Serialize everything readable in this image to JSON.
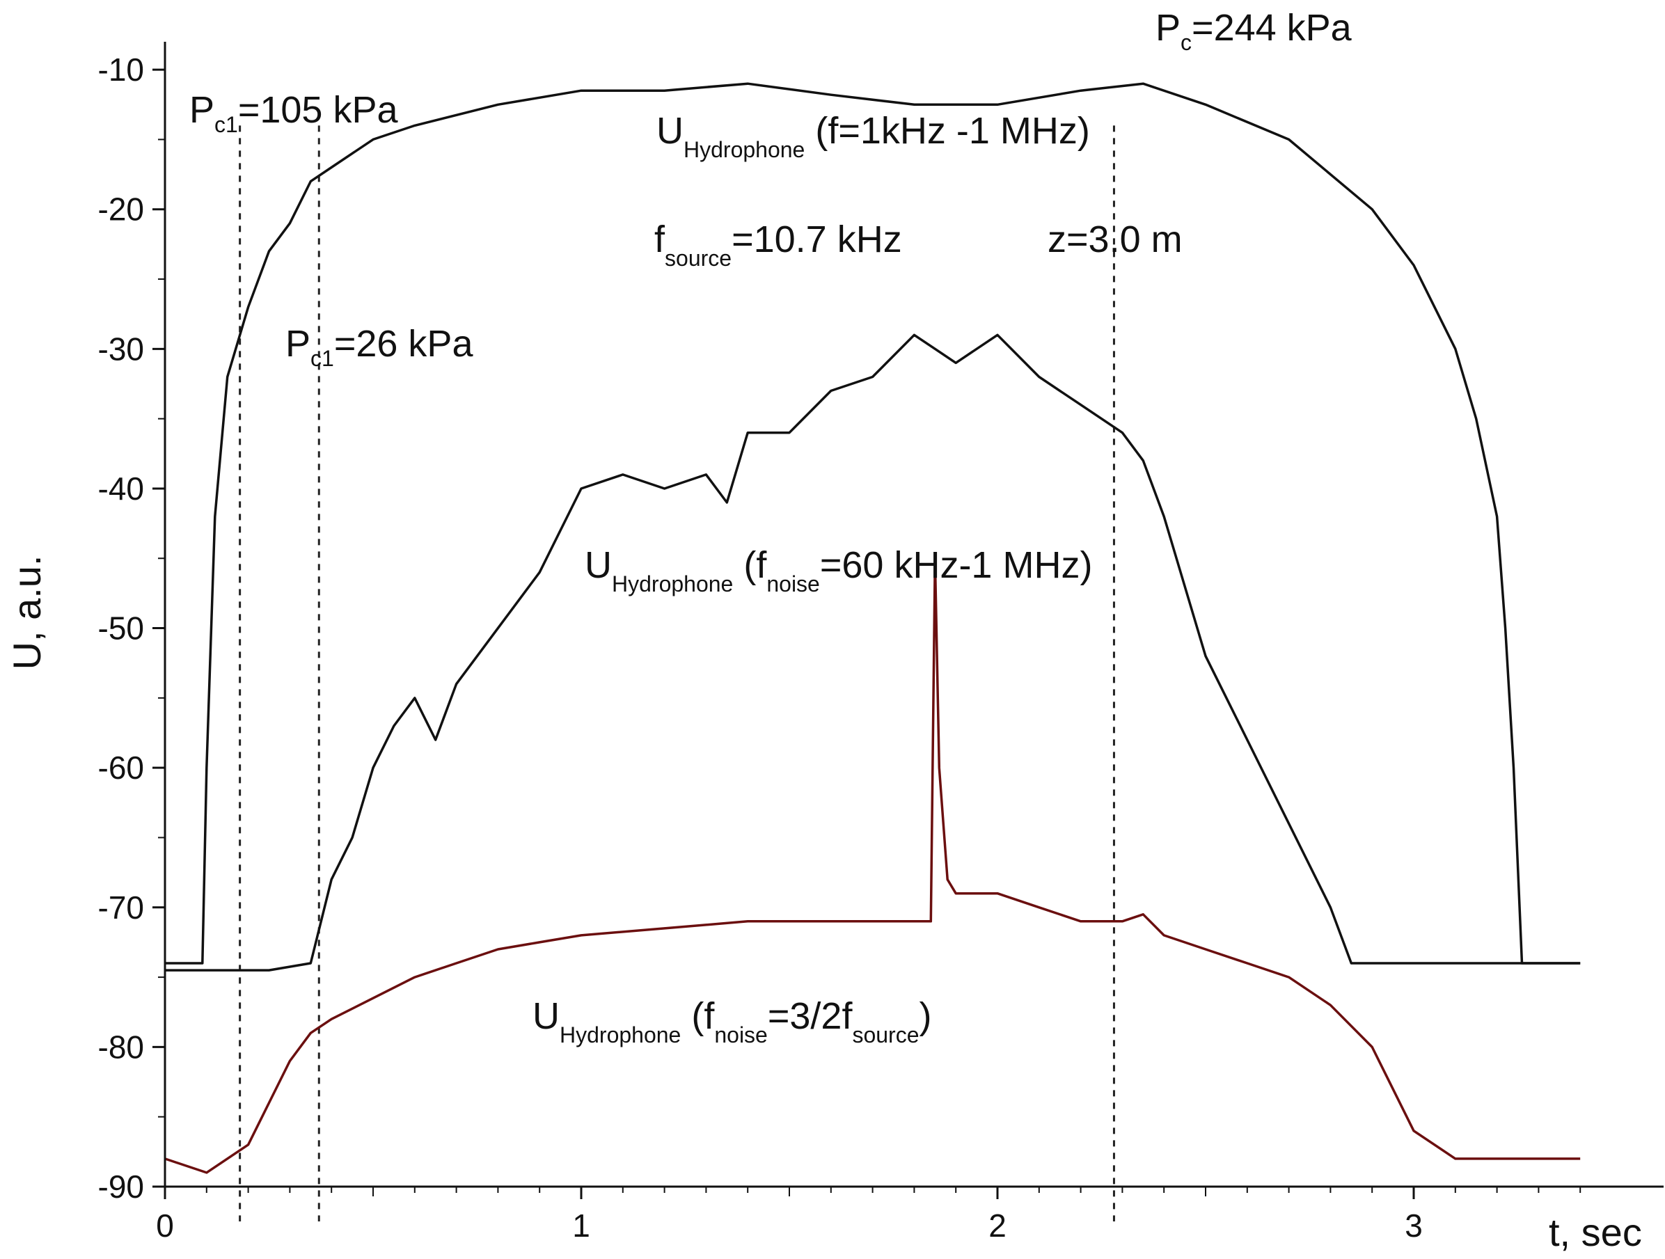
{
  "chart_data": {
    "type": "line",
    "title": "",
    "xlabel": "t, sec",
    "ylabel": "U, a.u.",
    "xlim": [
      0,
      3.5
    ],
    "ylim": [
      -90,
      -8
    ],
    "x_ticks": [
      0,
      1,
      2,
      3
    ],
    "x_tick_labels": [
      "0",
      "1",
      "2",
      "3"
    ],
    "y_ticks": [
      -10,
      -20,
      -30,
      -40,
      -50,
      -60,
      -70,
      -80,
      -90
    ],
    "y_tick_labels": [
      "-10",
      "-20",
      "-30",
      "-40",
      "-50",
      "-60",
      "-70",
      "-80",
      "-90"
    ],
    "grid": false,
    "legend": "none",
    "series": [
      {
        "color": "#111111",
        "x": [
          0,
          0.09,
          0.1,
          0.12,
          0.15,
          0.2,
          0.25,
          0.3,
          0.35,
          0.4,
          0.5,
          0.6,
          0.8,
          1.0,
          1.2,
          1.4,
          1.6,
          1.8,
          2.0,
          2.2,
          2.35,
          2.5,
          2.7,
          2.9,
          3.0,
          3.1,
          3.15,
          3.2,
          3.22,
          3.24,
          3.26,
          3.3,
          3.4
        ],
        "y": [
          -74,
          -74,
          -60,
          -42,
          -32,
          -27,
          -23,
          -21,
          -18,
          -17,
          -15,
          -14,
          -12.5,
          -11.5,
          -11.5,
          -11,
          -11.8,
          -12.5,
          -12.5,
          -11.5,
          -11,
          -12.5,
          -15,
          -20,
          -24,
          -30,
          -35,
          -42,
          -50,
          -60,
          -74,
          -74,
          -74
        ]
      },
      {
        "color": "#111111",
        "x": [
          0,
          0.1,
          0.25,
          0.35,
          0.4,
          0.45,
          0.5,
          0.55,
          0.6,
          0.65,
          0.7,
          0.8,
          0.85,
          0.9,
          0.95,
          1.0,
          1.1,
          1.2,
          1.3,
          1.35,
          1.4,
          1.5,
          1.6,
          1.7,
          1.8,
          1.85,
          1.9,
          2.0,
          2.1,
          2.2,
          2.3,
          2.35,
          2.4,
          2.5,
          2.6,
          2.7,
          2.8,
          2.85,
          3.0,
          3.2,
          3.4
        ],
        "y": [
          -74.5,
          -74.5,
          -74.5,
          -74,
          -68,
          -65,
          -60,
          -57,
          -55,
          -58,
          -54,
          -50,
          -48,
          -46,
          -43,
          -40,
          -39,
          -40,
          -39,
          -41,
          -36,
          -36,
          -33,
          -32,
          -29,
          -30,
          -31,
          -29,
          -32,
          -34,
          -36,
          -38,
          -42,
          -52,
          -58,
          -64,
          -70,
          -74,
          -74,
          -74,
          -74
        ]
      },
      {
        "color": "#6b0f0f",
        "x": [
          0,
          0.1,
          0.2,
          0.25,
          0.3,
          0.35,
          0.4,
          0.5,
          0.6,
          0.7,
          0.8,
          0.9,
          1.0,
          1.2,
          1.4,
          1.6,
          1.8,
          1.84,
          1.85,
          1.86,
          1.88,
          1.9,
          2.0,
          2.1,
          2.2,
          2.3,
          2.35,
          2.4,
          2.5,
          2.6,
          2.7,
          2.8,
          2.9,
          3.0,
          3.1,
          3.2,
          3.3,
          3.4
        ],
        "y": [
          -88,
          -89,
          -87,
          -84,
          -81,
          -79,
          -78,
          -76.5,
          -75,
          -74,
          -73,
          -72.5,
          -72,
          -71.5,
          -71,
          -71,
          -71,
          -71,
          -45,
          -60,
          -68,
          -69,
          -69,
          -70,
          -71,
          -71,
          -70.5,
          -72,
          -73,
          -74,
          -75,
          -77,
          -80,
          -86,
          -88,
          -88,
          -88,
          -88
        ]
      }
    ],
    "annotations": [
      {
        "main": "P",
        "sub": "c1",
        "rest": "=105  kPa"
      },
      {
        "main": "P",
        "sub": "c",
        "rest": "=244  kPa"
      },
      {
        "main": "U",
        "sub": "Hydrophone",
        "rest": " (f=1kHz -1 MHz)"
      },
      {
        "main": "f",
        "sub": "source",
        "rest": "=10.7 kHz"
      },
      {
        "main": "z=3.0 m",
        "sub": "",
        "rest": ""
      },
      {
        "main": "P",
        "sub": "c1",
        "rest": "=26    kPa"
      },
      {
        "main": "U",
        "sub": "Hydrophone",
        "rest": " (f"
      },
      {
        "main": "",
        "sub": "noise",
        "rest": "=60 kHz-1 MHz)"
      },
      {
        "main": "U",
        "sub": "Hydrophone",
        "rest": " (f"
      },
      {
        "main": "",
        "sub": "noise",
        "rest": "=3/2f"
      },
      {
        "main": "",
        "sub": "source",
        "rest": ")"
      }
    ],
    "dashed_markers_x": [
      0.18,
      0.37,
      2.28
    ]
  }
}
